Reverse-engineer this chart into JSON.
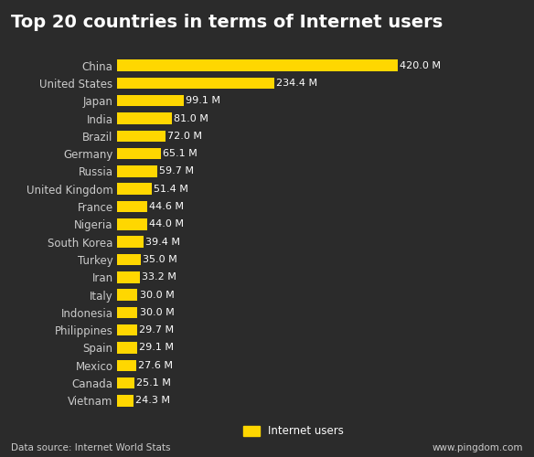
{
  "title": "Top 20 countries in terms of Internet users",
  "countries": [
    "China",
    "United States",
    "Japan",
    "India",
    "Brazil",
    "Germany",
    "Russia",
    "United Kingdom",
    "France",
    "Nigeria",
    "South Korea",
    "Turkey",
    "Iran",
    "Italy",
    "Indonesia",
    "Philippines",
    "Spain",
    "Mexico",
    "Canada",
    "Vietnam"
  ],
  "values": [
    420.0,
    234.4,
    99.1,
    81.0,
    72.0,
    65.1,
    59.7,
    51.4,
    44.6,
    44.0,
    39.4,
    35.0,
    33.2,
    30.0,
    30.0,
    29.7,
    29.1,
    27.6,
    25.1,
    24.3
  ],
  "bar_color": "#FFD700",
  "background_color": "#2b2b2b",
  "text_color": "#ffffff",
  "grid_color": "#555555",
  "label_color": "#cccccc",
  "footer_source": "Data source: Internet World Stats",
  "footer_right": "www.pingdom.com",
  "legend_label": "Internet users",
  "title_fontsize": 14,
  "label_fontsize": 8.5,
  "value_fontsize": 8,
  "footer_fontsize": 7.5
}
